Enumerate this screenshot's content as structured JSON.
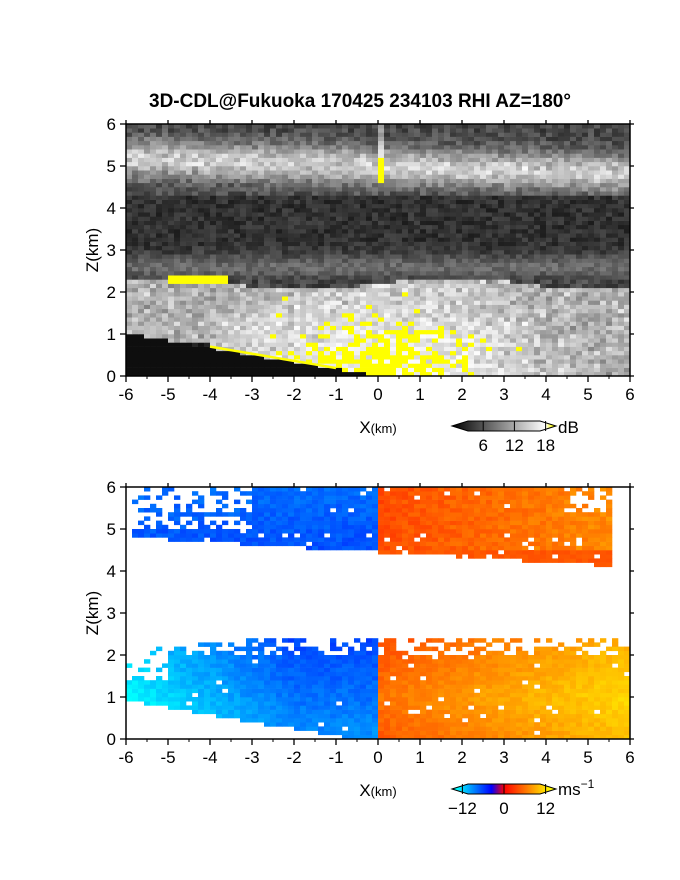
{
  "figure_title": "3D-CDL@Fukuoka 170425 234103 RHI AZ=180°",
  "chart_data": [
    {
      "type": "heatmap",
      "quantity": "backscatter intensity",
      "xlabel": "X",
      "xlabel_unit": "(km)",
      "ylabel": "Z",
      "ylabel_unit": "(km)",
      "xlim": [
        -6,
        6
      ],
      "ylim": [
        0,
        6
      ],
      "x_ticks": [
        "-6",
        "-5",
        "-4",
        "-3",
        "-2",
        "-1",
        "0",
        "1",
        "2",
        "3",
        "4",
        "5",
        "6"
      ],
      "y_ticks": [
        "0",
        "1",
        "2",
        "3",
        "4",
        "5",
        "6"
      ],
      "colorbar": {
        "unit": "dB",
        "ticks": [
          "6",
          "12",
          "18"
        ],
        "tick_values": [
          6,
          12,
          18
        ],
        "range": [
          0,
          20
        ],
        "colors": [
          "#000000",
          "#ffffff",
          "#ffff00"
        ]
      },
      "features": [
        {
          "desc": "upper aerosol/cloud layer",
          "x": [
            -6,
            6
          ],
          "z": [
            4.4,
            5.6
          ],
          "db": 10
        },
        {
          "desc": "vertical streak",
          "x": [
            0,
            0.1
          ],
          "z": [
            4.6,
            6.0
          ],
          "db": 15
        },
        {
          "desc": "lower boundary layer",
          "x": [
            -6,
            6
          ],
          "z": [
            0.0,
            2.5
          ],
          "db": 12
        },
        {
          "desc": "saturated patch",
          "x": [
            -5.0,
            -3.5
          ],
          "z": [
            2.2,
            2.4
          ],
          "db": 19
        },
        {
          "desc": "saturated near-field patch",
          "x": [
            -0.6,
            1.1
          ],
          "z": [
            0.3,
            1.2
          ],
          "db": 19
        }
      ]
    },
    {
      "type": "heatmap",
      "quantity": "radial velocity",
      "xlabel": "X",
      "xlabel_unit": "(km)",
      "ylabel": "Z",
      "ylabel_unit": "(km)",
      "xlim": [
        -6,
        6
      ],
      "ylim": [
        0,
        6
      ],
      "x_ticks": [
        "-6",
        "-5",
        "-4",
        "-3",
        "-2",
        "-1",
        "0",
        "1",
        "2",
        "3",
        "4",
        "5",
        "6"
      ],
      "y_ticks": [
        "0",
        "1",
        "2",
        "3",
        "4",
        "5",
        "6"
      ],
      "colorbar": {
        "unit": "ms",
        "unit_exponent": "−1",
        "ticks": [
          "−12",
          "0",
          "12"
        ],
        "tick_values": [
          -12,
          0,
          12
        ],
        "range": [
          -15,
          15
        ],
        "colors": [
          "#00ffff",
          "#0000ff",
          "#ff0000",
          "#ffff00"
        ]
      },
      "features": [
        {
          "desc": "upper layer",
          "x": [
            -5.8,
            6
          ],
          "z": [
            4.0,
            6.0
          ],
          "v_left": -8,
          "v_right": 6
        },
        {
          "desc": "lower layer",
          "x": [
            -6,
            6
          ],
          "z": [
            0.0,
            2.8
          ],
          "v_left": -12,
          "v_right": 10
        }
      ]
    }
  ]
}
